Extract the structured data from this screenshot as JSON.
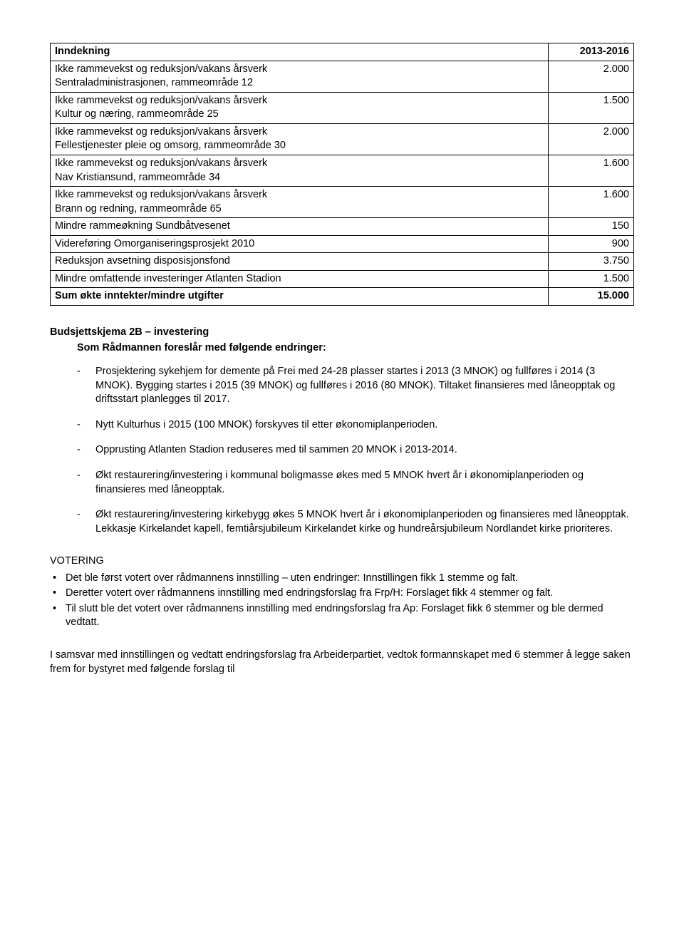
{
  "table": {
    "rows": [
      {
        "label": "Inndekning",
        "value": "2013-2016",
        "bold": true
      },
      {
        "label": "Ikke rammevekst og reduksjon/vakans årsverk\nSentraladministrasjonen, rammeområde 12",
        "value": "2.000",
        "bold": false
      },
      {
        "label": "Ikke rammevekst og reduksjon/vakans årsverk\nKultur og næring, rammeområde 25",
        "value": "1.500",
        "bold": false
      },
      {
        "label": "Ikke rammevekst og reduksjon/vakans årsverk\nFellestjenester pleie og omsorg, rammeområde 30",
        "value": "2.000",
        "bold": false
      },
      {
        "label": "Ikke rammevekst og reduksjon/vakans årsverk\nNav Kristiansund, rammeområde 34",
        "value": "1.600",
        "bold": false
      },
      {
        "label": "Ikke rammevekst og reduksjon/vakans årsverk\nBrann og redning, rammeområde 65",
        "value": "1.600",
        "bold": false
      },
      {
        "label": "Mindre rammeøkning Sundbåtvesenet",
        "value": "150",
        "bold": false
      },
      {
        "label": "Videreføring Omorganiseringsprosjekt 2010",
        "value": "900",
        "bold": false
      },
      {
        "label": "Reduksjon avsetning disposisjonsfond",
        "value": "3.750",
        "bold": false
      },
      {
        "label": "Mindre omfattende investeringer Atlanten Stadion",
        "value": "1.500",
        "bold": false
      },
      {
        "label": "Sum økte inntekter/mindre utgifter",
        "value": "15.000",
        "bold": true
      }
    ]
  },
  "section2": {
    "heading": "Budsjettskjema 2B – investering",
    "subheading": "Som Rådmannen foreslår med følgende endringer:",
    "items": [
      "Prosjektering sykehjem for demente på Frei med 24-28 plasser startes i 2013 (3 MNOK) og fullføres i 2014 (3 MNOK). Bygging startes i 2015 (39 MNOK) og fullføres i 2016 (80 MNOK). Tiltaket finansieres med låneopptak og driftsstart planlegges til 2017.",
      "Nytt Kulturhus i 2015 (100 MNOK) forskyves til etter økonomiplanperioden.",
      "Opprusting Atlanten Stadion reduseres med til sammen 20 MNOK i 2013-2014.",
      "Økt restaurering/investering i kommunal boligmasse økes med 5 MNOK hvert år i økonomiplanperioden og finansieres med låneopptak.",
      "Økt restaurering/investering kirkebygg økes 5 MNOK hvert år i økonomiplanperioden og finansieres med låneopptak. Lekkasje Kirkelandet kapell, femtiårsjubileum Kirkelandet kirke og hundreårsjubileum Nordlandet kirke prioriteres."
    ]
  },
  "votering": {
    "heading": "VOTERING",
    "items": [
      "Det ble først votert over rådmannens innstilling – uten endringer: Innstillingen fikk 1 stemme og falt.",
      "Deretter votert over rådmannens innstilling med endringsforslag fra Frp/H: Forslaget fikk 4 stemmer og falt.",
      "Til slutt ble det votert over rådmannens innstilling med endringsforslag fra Ap: Forslaget fikk 6 stemmer og ble dermed vedtatt."
    ]
  },
  "final": "I samsvar med innstillingen og vedtatt endringsforslag fra Arbeiderpartiet, vedtok formannskapet med 6 stemmer å legge saken frem for bystyret med følgende forslag til"
}
